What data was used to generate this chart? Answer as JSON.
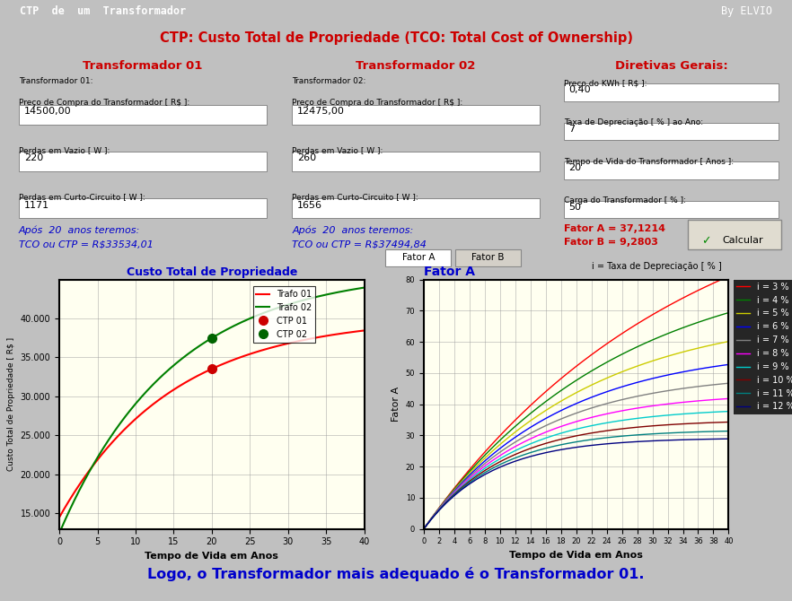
{
  "title_bar": "CTP  de  um  Transformador",
  "by_text": "By ELVIO",
  "main_title": "CTP: Custo Total de Propriedade (TCO: Total Cost of Ownership)",
  "trafo1_title": "Transformador 01",
  "trafo2_title": "Transformador 02",
  "diretivas_title": "Diretivas Gerais:",
  "trafo1_label": "Transformador 01:",
  "trafo1_preco_label": "Preço de Compra do Transformador [ R$ ]:",
  "trafo1_preco": "14500,00",
  "trafo1_vazio_label": "Perdas em Vazio [ W ]:",
  "trafo1_vazio": "220",
  "trafo1_cc_label": "Perdas em Curto-Circuito [ W ]:",
  "trafo1_cc": "1171",
  "trafo1_result_line1": "Após  20  anos teremos:",
  "trafo1_result_line2": "TCO ou CTP = R$33534,01",
  "trafo2_label": "Transformador 02:",
  "trafo2_preco_label": "Preço de Compra do Transformador [ R$ ]:",
  "trafo2_preco": "12475,00",
  "trafo2_vazio_label": "Perdas em Vazio [ W ]:",
  "trafo2_vazio": "260",
  "trafo2_cc_label": "Perdas em Curto-Circuito [ W ]:",
  "trafo2_cc": "1656",
  "trafo2_result_line1": "Após  20  anos teremos:",
  "trafo2_result_line2": "TCO ou CTP = R$37494,84",
  "dir_kwh_label": "Preço do KWh [ R$ ]:",
  "dir_kwh": "0,40",
  "dir_dep_label": "Taxa de Depreciação [ % ] ao Ano:",
  "dir_dep": "7",
  "dir_vida_label": "Tempo de Vida do Transformador [ Anos ]:",
  "dir_vida": "20",
  "dir_carga_label": "Carga do Transformador [ % ]:",
  "dir_carga": "50",
  "fator_a_val": "Fator A = 37,1214",
  "fator_b_val": "Fator B = 9,2803",
  "calcular_btn": "Calcular",
  "left_chart_title": "Custo Total de Propriedade",
  "left_chart_xlabel": "Tempo de Vida em Anos",
  "left_chart_ylabel": "Custo Total de Propriedade [ R$ ]",
  "right_chart_title": "Fator A",
  "right_chart_xlabel": "Tempo de Vida em Anos",
  "right_chart_ylabel": "Fator A",
  "right_chart_legend_title": "i = Taxa de Depreciação [ % ]",
  "fator_a_tab": "Fator A",
  "fator_b_tab": "Fator B",
  "bottom_text": "Logo, o Transformador mais adequado é o Transformador 01.",
  "bg_color": "#c0c0c0",
  "title_bar_color": "#000080",
  "panel_bg": "#d4d0c8",
  "plot_bg": "#fffff0",
  "trafo1_color": "#ff0000",
  "trafo2_color": "#008000",
  "ctp01_color": "#cc0000",
  "ctp02_color": "#006400",
  "bottom_bg": "#8080ff",
  "bottom_inner_bg": "#aaaaff",
  "trafo1_purchase": 14500.0,
  "trafo1_no_load": 220,
  "trafo1_full_load": 1171,
  "trafo2_purchase": 12475.0,
  "trafo2_no_load": 260,
  "trafo2_full_load": 1656,
  "kwh_price": 0.4,
  "dep_rate": 7,
  "life_years": 20,
  "load_factor": 0.5,
  "interest_rates": [
    3,
    4,
    5,
    6,
    7,
    8,
    9,
    10,
    11,
    12
  ],
  "interest_colors": [
    "#ff0000",
    "#008000",
    "#cccc00",
    "#0000ff",
    "#808080",
    "#ff00ff",
    "#00cccc",
    "#800000",
    "#008080",
    "#000080"
  ]
}
